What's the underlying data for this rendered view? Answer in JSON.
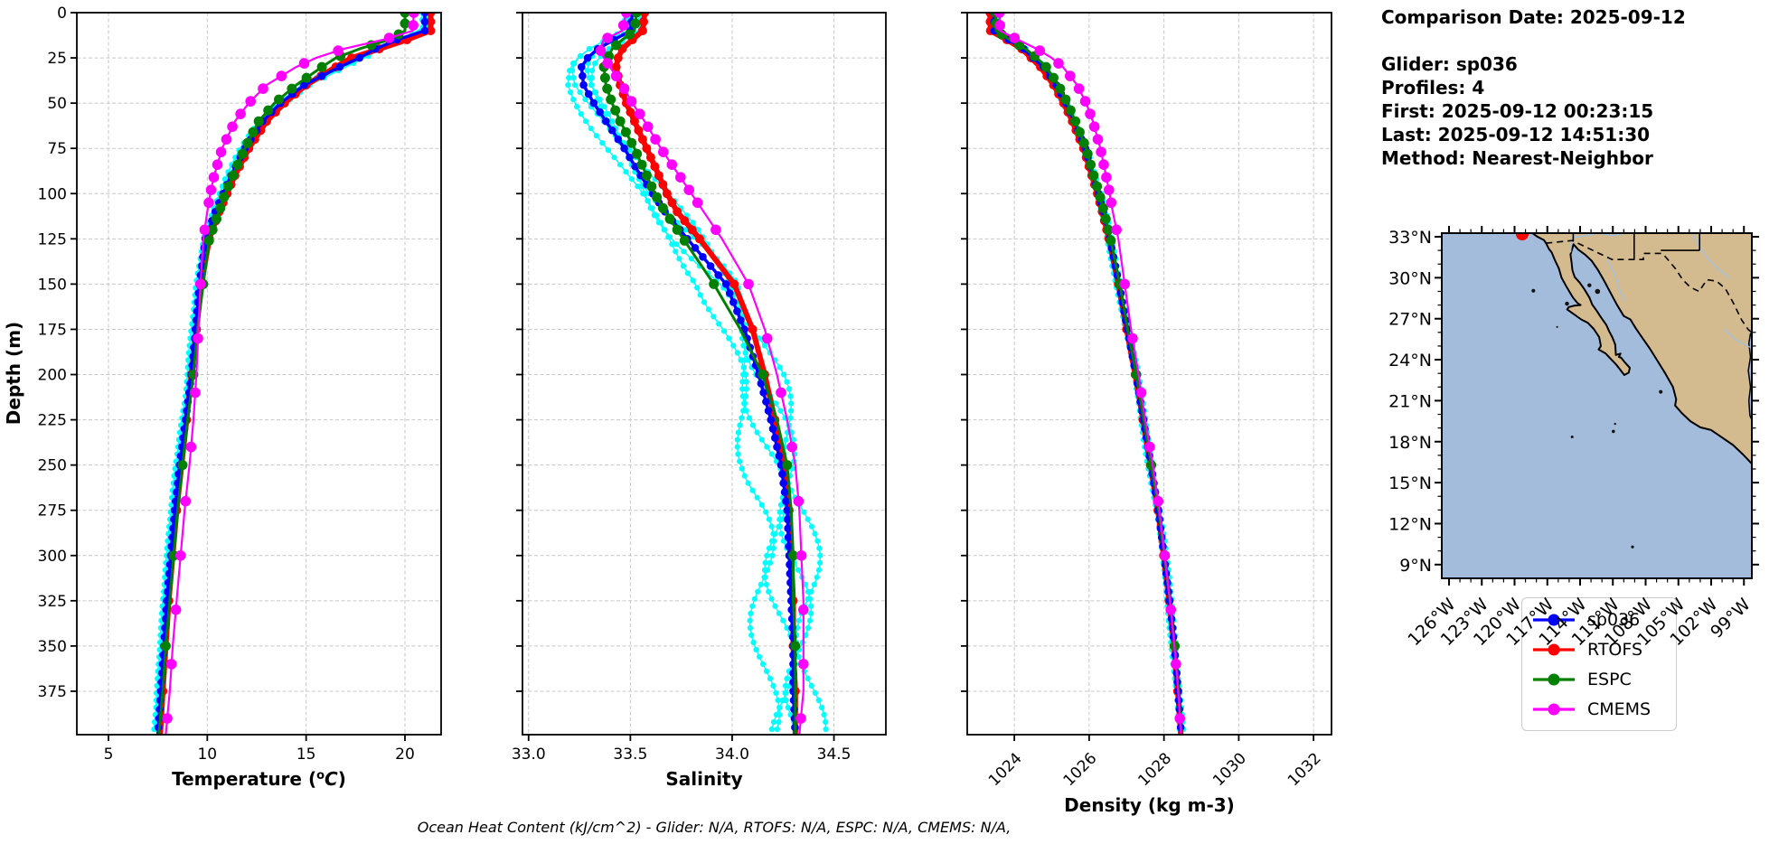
{
  "page": {
    "background": "#ffffff"
  },
  "info_panel": {
    "comparison_date": "Comparison Date: 2025-09-12",
    "glider": "Glider: sp036",
    "profiles": "Profiles: 4",
    "first": "First: 2025-09-12 00:23:15",
    "last": "Last: 2025-09-12 14:51:30",
    "method": "Method: Nearest-Neighbor"
  },
  "footer": {
    "ohc_note": "Ocean Heat Content (kJ/cm^2) - Glider: N/A,  RTOFS: N/A,  ESPC: N/A,  CMEMS: N/A,"
  },
  "legend": {
    "entries": [
      {
        "label": "sp036",
        "color": "#0000ff"
      },
      {
        "label": "RTOFS",
        "color": "#ff0000"
      },
      {
        "label": "ESPC",
        "color": "#008000"
      },
      {
        "label": "CMEMS",
        "color": "#ff00ff"
      }
    ]
  },
  "map": {
    "ocean_color": "#a3bcdc",
    "land_color": "#d4ba8f",
    "river_color": "#9dc3e6",
    "border_color": "#000000",
    "marker_color": "#ff0000",
    "lat_labels": [
      "33°N",
      "30°N",
      "27°N",
      "24°N",
      "21°N",
      "18°N",
      "15°N",
      "12°N",
      "9°N"
    ],
    "lat_values": [
      33,
      30,
      27,
      24,
      21,
      18,
      15,
      12,
      9
    ],
    "lon_labels": [
      "126°W",
      "123°W",
      "120°W",
      "117°W",
      "114°W",
      "111°W",
      "108°W",
      "105°W",
      "102°W",
      "99°W"
    ],
    "lon_values": [
      -126,
      -123,
      -120,
      -117,
      -114,
      -111,
      -108,
      -105,
      -102,
      -99
    ]
  },
  "chart_data": [
    {
      "type": "line",
      "name": "temperature-panel",
      "xlabel": "Temperature (°C)",
      "xlabel_parts": {
        "pre": "Temperature (",
        "sup": "o",
        "italic": "C",
        "post": ")"
      },
      "ylabel": "Depth (m)",
      "xlim": [
        3.4,
        21.83
      ],
      "ylim": [
        0,
        399
      ],
      "xticks": [
        5,
        10,
        15,
        20
      ],
      "xtick_labels": [
        "5",
        "10",
        "15",
        "20"
      ],
      "yticks": [
        0,
        25,
        50,
        75,
        100,
        125,
        150,
        175,
        200,
        225,
        250,
        275,
        300,
        325,
        350,
        375
      ],
      "show_ytick_labels": true,
      "grid": true,
      "xlabel_y": 869,
      "depths": [
        0,
        10,
        15,
        20,
        25,
        30,
        40,
        50,
        60,
        75,
        90,
        100,
        110,
        125,
        150,
        175,
        200,
        225,
        250,
        275,
        300,
        325,
        350,
        375,
        399
      ],
      "series": [
        {
          "name": "sp036",
          "color": "#0000ff",
          "values": [
            21.0,
            21.0,
            19.6,
            18.5,
            17.7,
            16.7,
            14.9,
            13.7,
            12.8,
            11.9,
            11.2,
            10.8,
            10.4,
            9.9,
            9.6,
            9.4,
            9.2,
            8.9,
            8.6,
            8.35,
            8.15,
            7.95,
            7.8,
            7.65,
            7.5
          ]
        },
        {
          "name": "RTOFS",
          "color": "#ff0000",
          "values": [
            21.3,
            21.3,
            20.1,
            18.7,
            17.3,
            16.5,
            15.0,
            13.9,
            13.0,
            12.1,
            11.4,
            11.0,
            10.6,
            10.1,
            9.7,
            9.45,
            9.2,
            8.95,
            8.7,
            8.45,
            8.25,
            8.05,
            7.9,
            7.75,
            7.62
          ]
        },
        {
          "name": "ESPC",
          "color": "#008000",
          "values": [
            20.0,
            20.0,
            19.2,
            17.7,
            16.5,
            15.8,
            14.5,
            13.4,
            12.6,
            11.9,
            11.3,
            10.9,
            10.6,
            10.1,
            9.8,
            9.5,
            9.3,
            9.0,
            8.75,
            8.5,
            8.3,
            8.1,
            7.9,
            7.75,
            7.55
          ]
        },
        {
          "name": "CMEMS",
          "color": "#ff00ff",
          "values": [
            20.45,
            20.4,
            18.9,
            16.9,
            15.5,
            14.5,
            13.0,
            12.1,
            11.4,
            10.75,
            10.35,
            10.15,
            10.0,
            9.8,
            9.65,
            9.55,
            9.45,
            9.3,
            9.1,
            8.85,
            8.65,
            8.45,
            8.25,
            8.1,
            7.9
          ]
        }
      ],
      "raw_glider": {
        "name": "glider-raw-profiles",
        "color": "#00ffff",
        "count": 4,
        "offsets": [
          -0.15,
          0.0,
          0.12,
          0.25
        ]
      }
    },
    {
      "type": "line",
      "name": "salinity-panel",
      "xlabel": "Salinity",
      "ylabel": "Depth (m)",
      "xlim": [
        32.97,
        34.755
      ],
      "ylim": [
        0,
        399
      ],
      "xticks": [
        33.0,
        33.5,
        34.0,
        34.5
      ],
      "xtick_labels": [
        "33.0",
        "33.5",
        "34.0",
        "34.5"
      ],
      "yticks": [
        0,
        25,
        50,
        75,
        100,
        125,
        150,
        175,
        200,
        225,
        250,
        275,
        300,
        325,
        350,
        375
      ],
      "show_ytick_labels": false,
      "grid": true,
      "xlabel_y": 869,
      "depths": [
        0,
        10,
        15,
        20,
        25,
        30,
        40,
        50,
        60,
        75,
        90,
        100,
        110,
        125,
        150,
        175,
        200,
        225,
        250,
        275,
        300,
        325,
        350,
        375,
        399
      ],
      "series": [
        {
          "name": "sp036",
          "color": "#0000ff",
          "values": [
            33.51,
            33.5,
            33.42,
            33.34,
            33.29,
            33.26,
            33.27,
            33.32,
            33.38,
            33.47,
            33.55,
            33.61,
            33.67,
            33.78,
            33.97,
            34.06,
            34.13,
            34.19,
            34.24,
            34.27,
            34.28,
            34.29,
            34.3,
            34.3,
            34.31
          ]
        },
        {
          "name": "RTOFS",
          "color": "#ff0000",
          "values": [
            33.57,
            33.56,
            33.51,
            33.46,
            33.44,
            33.43,
            33.45,
            33.48,
            33.52,
            33.58,
            33.64,
            33.68,
            33.73,
            33.84,
            34.01,
            34.1,
            34.16,
            34.21,
            34.26,
            34.28,
            34.29,
            34.3,
            34.3,
            34.31,
            34.31
          ]
        },
        {
          "name": "ESPC",
          "color": "#008000",
          "values": [
            33.53,
            33.52,
            33.46,
            33.41,
            33.39,
            33.37,
            33.38,
            33.41,
            33.45,
            33.52,
            33.58,
            33.62,
            33.67,
            33.76,
            33.91,
            34.04,
            34.15,
            34.22,
            34.27,
            34.29,
            34.3,
            34.3,
            34.31,
            34.31,
            34.31
          ]
        },
        {
          "name": "CMEMS",
          "color": "#ff00ff",
          "values": [
            33.48,
            33.46,
            33.37,
            33.35,
            33.37,
            33.4,
            33.46,
            33.51,
            33.57,
            33.65,
            33.74,
            33.8,
            33.86,
            33.95,
            34.08,
            34.16,
            34.22,
            34.27,
            34.31,
            34.33,
            34.34,
            34.35,
            34.35,
            34.35,
            34.33
          ]
        }
      ],
      "raw_glider": {
        "name": "glider-raw-profiles",
        "color": "#00ffff",
        "count": 4,
        "offsets": [
          -0.1,
          -0.04,
          0.02,
          0.06
        ]
      }
    },
    {
      "type": "line",
      "name": "density-panel",
      "xlabel": "Density (kg m-3)",
      "ylabel": "Depth (m)",
      "xlim": [
        1022.74,
        1032.48
      ],
      "ylim": [
        0,
        399
      ],
      "xticks": [
        1024,
        1026,
        1028,
        1030,
        1032
      ],
      "xtick_labels": [
        "1024",
        "1026",
        "1028",
        "1030",
        "1032"
      ],
      "xtick_rotation": 45,
      "yticks": [
        0,
        25,
        50,
        75,
        100,
        125,
        150,
        175,
        200,
        225,
        250,
        275,
        300,
        325,
        350,
        375
      ],
      "show_ytick_labels": false,
      "grid": true,
      "xlabel_y": 898,
      "depths": [
        0,
        10,
        15,
        20,
        25,
        30,
        40,
        50,
        60,
        75,
        90,
        100,
        110,
        125,
        150,
        175,
        200,
        225,
        250,
        275,
        300,
        325,
        350,
        375,
        399
      ],
      "series": [
        {
          "name": "sp036",
          "color": "#0000ff",
          "values": [
            1023.45,
            1023.46,
            1023.85,
            1024.25,
            1024.5,
            1024.78,
            1025.12,
            1025.38,
            1025.6,
            1025.9,
            1026.1,
            1026.25,
            1026.38,
            1026.55,
            1026.8,
            1027.02,
            1027.25,
            1027.45,
            1027.65,
            1027.85,
            1028.0,
            1028.15,
            1028.28,
            1028.38,
            1028.46
          ]
        },
        {
          "name": "RTOFS",
          "color": "#ff0000",
          "values": [
            1023.35,
            1023.36,
            1023.8,
            1024.2,
            1024.45,
            1024.7,
            1025.05,
            1025.32,
            1025.55,
            1025.85,
            1026.07,
            1026.22,
            1026.35,
            1026.53,
            1026.78,
            1027.0,
            1027.23,
            1027.44,
            1027.64,
            1027.84,
            1027.99,
            1028.14,
            1028.27,
            1028.37,
            1028.45
          ]
        },
        {
          "name": "ESPC",
          "color": "#008000",
          "values": [
            1023.5,
            1023.51,
            1023.88,
            1024.3,
            1024.6,
            1024.85,
            1025.18,
            1025.42,
            1025.63,
            1025.92,
            1026.12,
            1026.27,
            1026.4,
            1026.57,
            1026.82,
            1027.03,
            1027.26,
            1027.46,
            1027.66,
            1027.86,
            1028.01,
            1028.16,
            1028.29,
            1028.39,
            1028.47
          ]
        },
        {
          "name": "CMEMS",
          "color": "#ff00ff",
          "values": [
            1023.6,
            1023.62,
            1024.1,
            1024.6,
            1025.0,
            1025.3,
            1025.68,
            1025.92,
            1026.1,
            1026.3,
            1026.45,
            1026.55,
            1026.63,
            1026.78,
            1026.95,
            1027.12,
            1027.32,
            1027.5,
            1027.7,
            1027.88,
            1028.02,
            1028.16,
            1028.28,
            1028.38,
            1028.45
          ]
        }
      ],
      "raw_glider": {
        "name": "glider-raw-profiles",
        "color": "#00ffff",
        "count": 4,
        "offsets": [
          -0.06,
          -0.02,
          0.02,
          0.05
        ]
      }
    }
  ]
}
